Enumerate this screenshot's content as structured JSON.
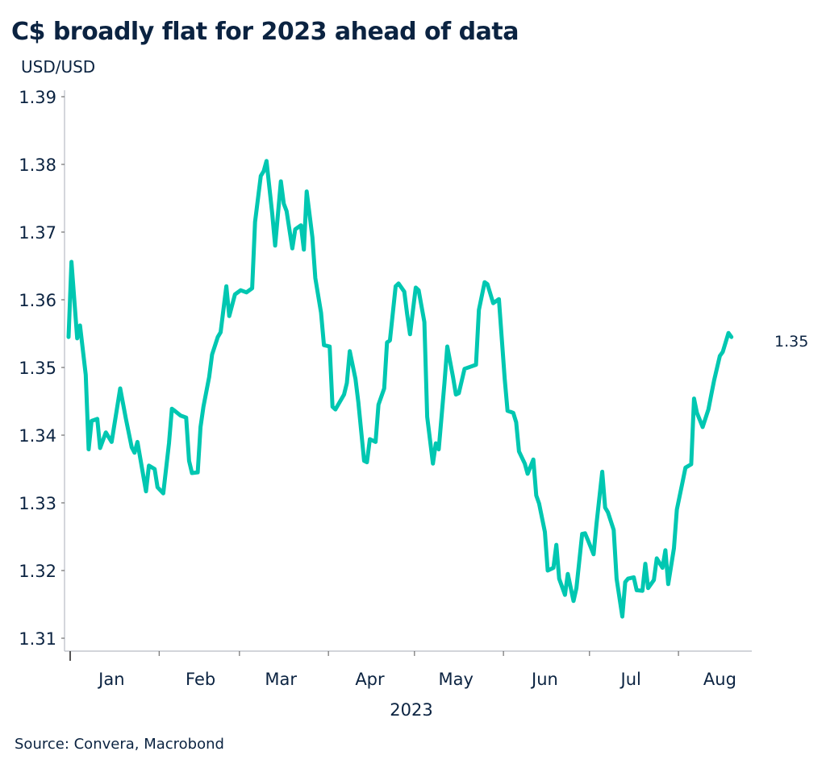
{
  "title": "C$ broadly flat for 2023 ahead of data",
  "source": "Source: Convera, Macrobond",
  "colors": {
    "line": "#00c7b1",
    "text": "#0b2341",
    "axis": "#b8bcc4"
  },
  "chart_data": {
    "type": "line",
    "title": "C$ broadly flat for 2023 ahead of data",
    "ylabel": "USD/USD",
    "xlabel": "2023",
    "ylim": [
      1.31,
      1.39
    ],
    "yticks": [
      "1.31",
      "1.32",
      "1.33",
      "1.34",
      "1.35",
      "1.36",
      "1.37",
      "1.38",
      "1.39"
    ],
    "xticks": [
      "Jan",
      "Feb",
      "Mar",
      "Apr",
      "May",
      "Jun",
      "Jul",
      "Aug"
    ],
    "xlim": [
      "2023-01-01",
      "2023-08-31"
    ],
    "grid": false,
    "last_value_label": "1.35",
    "series": [
      {
        "points": [
          [
            "2023-01-01",
            1.3545
          ],
          [
            "2023-01-02",
            1.3656
          ],
          [
            "2023-01-04",
            1.3543
          ],
          [
            "2023-01-05",
            1.3562
          ],
          [
            "2023-01-07",
            1.3489
          ],
          [
            "2023-01-08",
            1.3379
          ],
          [
            "2023-01-09",
            1.3421
          ],
          [
            "2023-01-11",
            1.3424
          ],
          [
            "2023-01-12",
            1.3381
          ],
          [
            "2023-01-14",
            1.3404
          ],
          [
            "2023-01-16",
            1.339
          ],
          [
            "2023-01-19",
            1.3469
          ],
          [
            "2023-01-21",
            1.3424
          ],
          [
            "2023-01-23",
            1.3382
          ],
          [
            "2023-01-24",
            1.3374
          ],
          [
            "2023-01-25",
            1.339
          ],
          [
            "2023-01-28",
            1.3317
          ],
          [
            "2023-01-29",
            1.3355
          ],
          [
            "2023-01-31",
            1.335
          ],
          [
            "2023-02-01",
            1.3323
          ],
          [
            "2023-02-03",
            1.3314
          ],
          [
            "2023-02-05",
            1.3388
          ],
          [
            "2023-02-06",
            1.3439
          ],
          [
            "2023-02-07",
            1.3436
          ],
          [
            "2023-02-09",
            1.3429
          ],
          [
            "2023-02-11",
            1.3426
          ],
          [
            "2023-02-12",
            1.3362
          ],
          [
            "2023-02-13",
            1.3344
          ],
          [
            "2023-02-15",
            1.3345
          ],
          [
            "2023-02-16",
            1.3412
          ],
          [
            "2023-02-17",
            1.3442
          ],
          [
            "2023-02-19",
            1.3486
          ],
          [
            "2023-02-20",
            1.3519
          ],
          [
            "2023-02-22",
            1.3545
          ],
          [
            "2023-02-23",
            1.3552
          ],
          [
            "2023-02-25",
            1.362
          ],
          [
            "2023-02-26",
            1.3576
          ],
          [
            "2023-02-28",
            1.3608
          ],
          [
            "2023-03-02",
            1.3614
          ],
          [
            "2023-03-04",
            1.3611
          ],
          [
            "2023-03-06",
            1.3617
          ],
          [
            "2023-03-07",
            1.3715
          ],
          [
            "2023-03-09",
            1.3783
          ],
          [
            "2023-03-10",
            1.379
          ],
          [
            "2023-03-11",
            1.3805
          ],
          [
            "2023-03-13",
            1.3727
          ],
          [
            "2023-03-14",
            1.368
          ],
          [
            "2023-03-16",
            1.3775
          ],
          [
            "2023-03-17",
            1.3742
          ],
          [
            "2023-03-18",
            1.3731
          ],
          [
            "2023-03-20",
            1.3676
          ],
          [
            "2023-03-21",
            1.3704
          ],
          [
            "2023-03-23",
            1.371
          ],
          [
            "2023-03-24",
            1.3674
          ],
          [
            "2023-03-25",
            1.376
          ],
          [
            "2023-03-27",
            1.3692
          ],
          [
            "2023-03-28",
            1.3632
          ],
          [
            "2023-03-30",
            1.3581
          ],
          [
            "2023-03-31",
            1.3533
          ],
          [
            "2023-04-02",
            1.3531
          ],
          [
            "2023-04-03",
            1.3442
          ],
          [
            "2023-04-04",
            1.3438
          ],
          [
            "2023-04-07",
            1.346
          ],
          [
            "2023-04-08",
            1.3477
          ],
          [
            "2023-04-09",
            1.3524
          ],
          [
            "2023-04-11",
            1.3483
          ],
          [
            "2023-04-12",
            1.3448
          ],
          [
            "2023-04-14",
            1.3362
          ],
          [
            "2023-04-15",
            1.336
          ],
          [
            "2023-04-16",
            1.3394
          ],
          [
            "2023-04-18",
            1.339
          ],
          [
            "2023-04-19",
            1.3445
          ],
          [
            "2023-04-21",
            1.3469
          ],
          [
            "2023-04-22",
            1.3537
          ],
          [
            "2023-04-23",
            1.354
          ],
          [
            "2023-04-25",
            1.362
          ],
          [
            "2023-04-26",
            1.3624
          ],
          [
            "2023-04-28",
            1.3612
          ],
          [
            "2023-04-29",
            1.3579
          ],
          [
            "2023-04-30",
            1.3549
          ],
          [
            "2023-05-02",
            1.3618
          ],
          [
            "2023-05-03",
            1.3614
          ],
          [
            "2023-05-05",
            1.3567
          ],
          [
            "2023-05-06",
            1.3427
          ],
          [
            "2023-05-08",
            1.3358
          ],
          [
            "2023-05-09",
            1.3388
          ],
          [
            "2023-05-10",
            1.3379
          ],
          [
            "2023-05-12",
            1.3477
          ],
          [
            "2023-05-13",
            1.3531
          ],
          [
            "2023-05-15",
            1.3486
          ],
          [
            "2023-05-16",
            1.346
          ],
          [
            "2023-05-17",
            1.3462
          ],
          [
            "2023-05-19",
            1.3498
          ],
          [
            "2023-05-21",
            1.3501
          ],
          [
            "2023-05-23",
            1.3504
          ],
          [
            "2023-05-24",
            1.3585
          ],
          [
            "2023-05-26",
            1.3626
          ],
          [
            "2023-05-27",
            1.3623
          ],
          [
            "2023-05-29",
            1.3595
          ],
          [
            "2023-05-30",
            1.3598
          ],
          [
            "2023-05-31",
            1.3601
          ],
          [
            "2023-06-02",
            1.3483
          ],
          [
            "2023-06-03",
            1.3436
          ],
          [
            "2023-06-05",
            1.3433
          ],
          [
            "2023-06-06",
            1.3419
          ],
          [
            "2023-06-07",
            1.3376
          ],
          [
            "2023-06-09",
            1.3358
          ],
          [
            "2023-06-10",
            1.3343
          ],
          [
            "2023-06-12",
            1.3364
          ],
          [
            "2023-06-13",
            1.3311
          ],
          [
            "2023-06-14",
            1.3299
          ],
          [
            "2023-06-16",
            1.3257
          ],
          [
            "2023-06-17",
            1.32
          ],
          [
            "2023-06-19",
            1.3204
          ],
          [
            "2023-06-20",
            1.3238
          ],
          [
            "2023-06-21",
            1.3188
          ],
          [
            "2023-06-23",
            1.3164
          ],
          [
            "2023-06-24",
            1.3195
          ],
          [
            "2023-06-26",
            1.3155
          ],
          [
            "2023-06-27",
            1.3174
          ],
          [
            "2023-06-29",
            1.3254
          ],
          [
            "2023-06-30",
            1.3255
          ],
          [
            "2023-07-01",
            1.3245
          ],
          [
            "2023-07-03",
            1.3224
          ],
          [
            "2023-07-04",
            1.3269
          ],
          [
            "2023-07-06",
            1.3346
          ],
          [
            "2023-07-07",
            1.3293
          ],
          [
            "2023-07-08",
            1.3286
          ],
          [
            "2023-07-10",
            1.326
          ],
          [
            "2023-07-11",
            1.3188
          ],
          [
            "2023-07-13",
            1.3132
          ],
          [
            "2023-07-14",
            1.3183
          ],
          [
            "2023-07-15",
            1.3188
          ],
          [
            "2023-07-17",
            1.319
          ],
          [
            "2023-07-18",
            1.3171
          ],
          [
            "2023-07-20",
            1.317
          ],
          [
            "2023-07-21",
            1.321
          ],
          [
            "2023-07-22",
            1.3174
          ],
          [
            "2023-07-24",
            1.3186
          ],
          [
            "2023-07-25",
            1.3218
          ],
          [
            "2023-07-27",
            1.3204
          ],
          [
            "2023-07-28",
            1.323
          ],
          [
            "2023-07-29",
            1.318
          ],
          [
            "2023-07-31",
            1.3233
          ],
          [
            "2023-08-01",
            1.329
          ],
          [
            "2023-08-03",
            1.3331
          ],
          [
            "2023-08-04",
            1.3352
          ],
          [
            "2023-08-06",
            1.3357
          ],
          [
            "2023-08-07",
            1.3454
          ],
          [
            "2023-08-08",
            1.3433
          ],
          [
            "2023-08-10",
            1.3412
          ],
          [
            "2023-08-12",
            1.3438
          ],
          [
            "2023-08-13",
            1.346
          ],
          [
            "2023-08-14",
            1.3481
          ],
          [
            "2023-08-16",
            1.3517
          ],
          [
            "2023-08-17",
            1.3523
          ],
          [
            "2023-08-19",
            1.3551
          ],
          [
            "2023-08-20",
            1.3545
          ]
        ]
      }
    ]
  }
}
